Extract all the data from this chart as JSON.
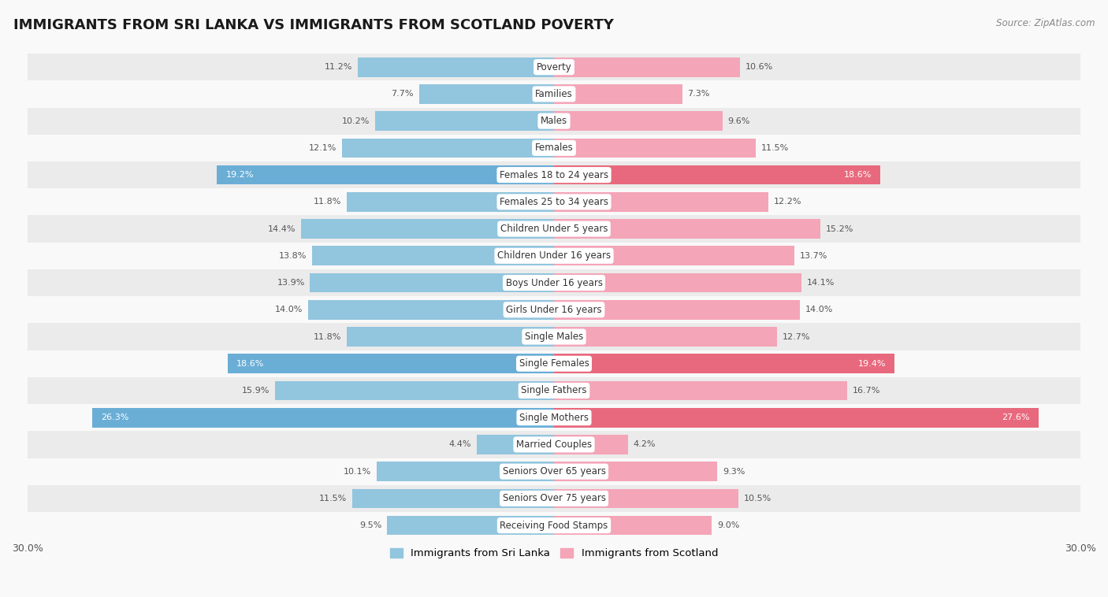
{
  "title": "IMMIGRANTS FROM SRI LANKA VS IMMIGRANTS FROM SCOTLAND POVERTY",
  "source": "Source: ZipAtlas.com",
  "categories": [
    "Poverty",
    "Families",
    "Males",
    "Females",
    "Females 18 to 24 years",
    "Females 25 to 34 years",
    "Children Under 5 years",
    "Children Under 16 years",
    "Boys Under 16 years",
    "Girls Under 16 years",
    "Single Males",
    "Single Females",
    "Single Fathers",
    "Single Mothers",
    "Married Couples",
    "Seniors Over 65 years",
    "Seniors Over 75 years",
    "Receiving Food Stamps"
  ],
  "sri_lanka": [
    11.2,
    7.7,
    10.2,
    12.1,
    19.2,
    11.8,
    14.4,
    13.8,
    13.9,
    14.0,
    11.8,
    18.6,
    15.9,
    26.3,
    4.4,
    10.1,
    11.5,
    9.5
  ],
  "scotland": [
    10.6,
    7.3,
    9.6,
    11.5,
    18.6,
    12.2,
    15.2,
    13.7,
    14.1,
    14.0,
    12.7,
    19.4,
    16.7,
    27.6,
    4.2,
    9.3,
    10.5,
    9.0
  ],
  "sri_lanka_color": "#92c5de",
  "scotland_color": "#f4a5b8",
  "sri_lanka_highlight_color": "#6aaed6",
  "scotland_highlight_color": "#e8697d",
  "highlight_rows": [
    4,
    11,
    13
  ],
  "xlim": 30.0,
  "bar_height": 0.72,
  "background_color": "#f9f9f9",
  "row_even_color": "#ebebeb",
  "row_odd_color": "#f9f9f9",
  "label_bg_color": "#ffffff",
  "value_label_color": "#555555",
  "value_label_highlight_color": "#ffffff",
  "legend_left": "Immigrants from Sri Lanka",
  "legend_right": "Immigrants from Scotland"
}
